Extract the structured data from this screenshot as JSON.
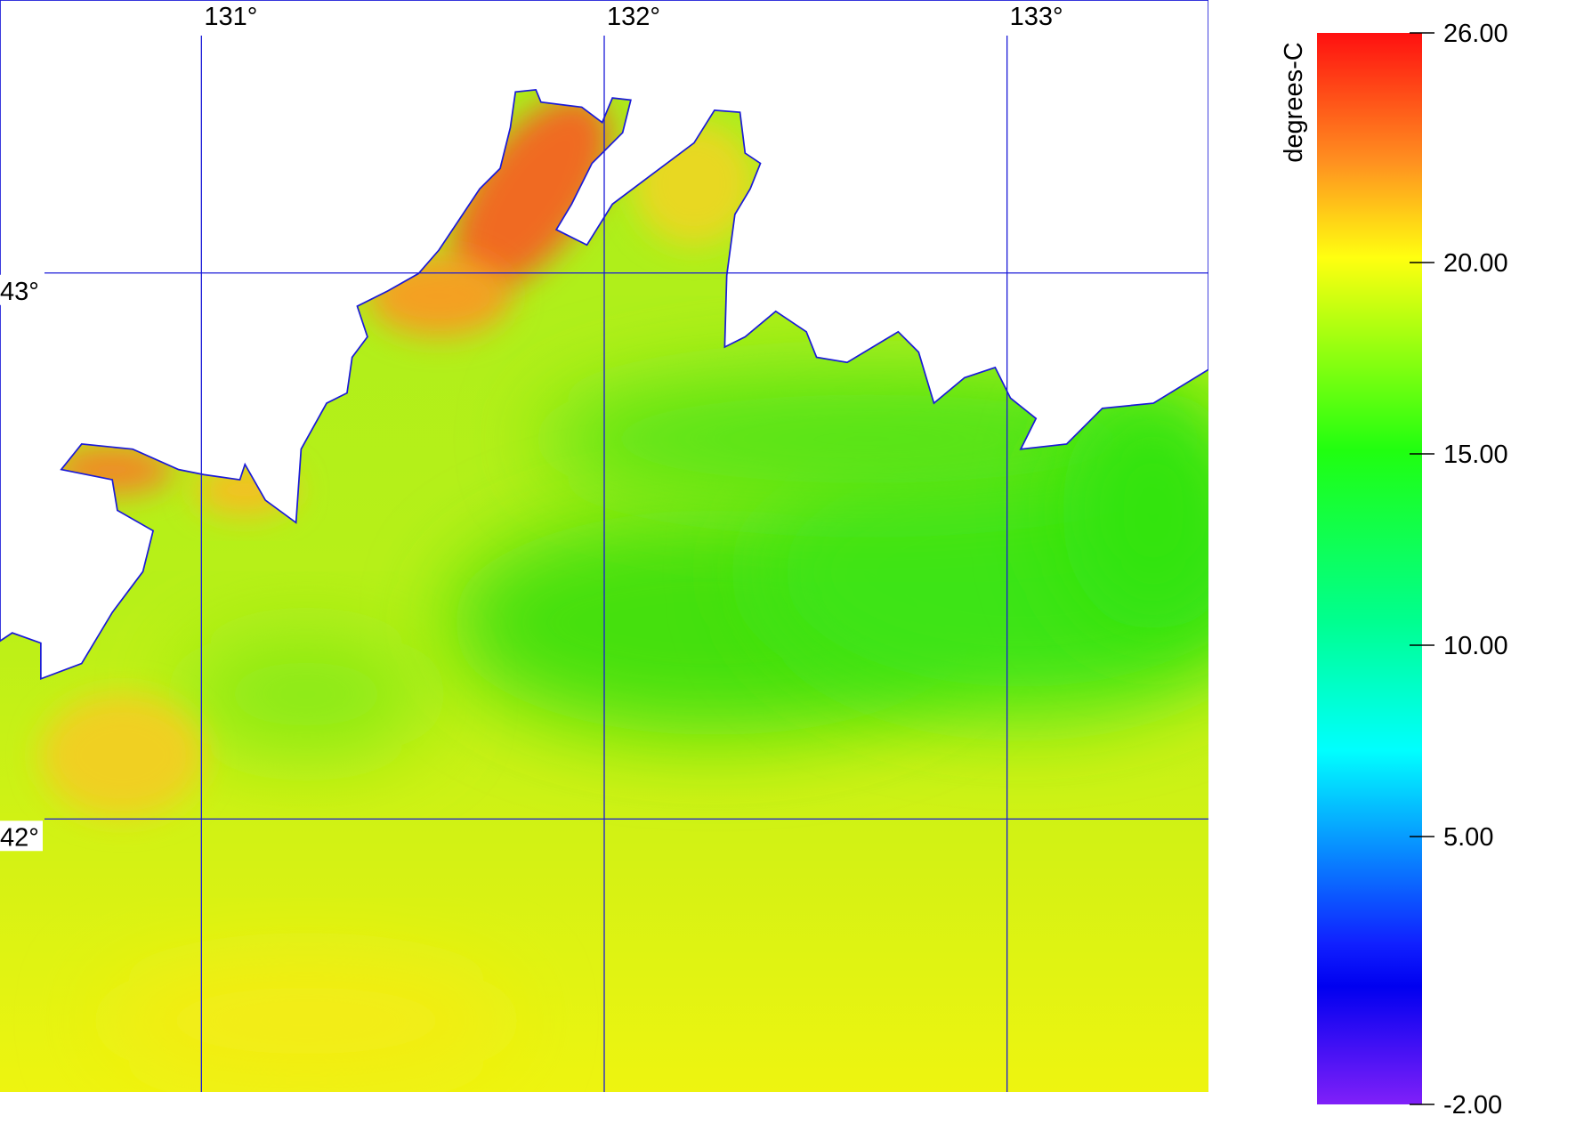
{
  "map": {
    "xlim": [
      130.5,
      133.5
    ],
    "ylim": [
      41.5,
      43.5
    ],
    "lon_ticks": [
      {
        "value": 131,
        "label": "131°"
      },
      {
        "value": 132,
        "label": "132°"
      },
      {
        "value": 133,
        "label": "133°"
      }
    ],
    "lat_ticks": [
      {
        "value": 43,
        "label": "43°"
      },
      {
        "value": 42,
        "label": "42°"
      }
    ]
  },
  "colorbar": {
    "label": "degrees-C",
    "range": [
      -2,
      26
    ],
    "ticks": [
      {
        "value": 26,
        "label": "26.00"
      },
      {
        "value": 20,
        "label": "20.00"
      },
      {
        "value": 15,
        "label": "15.00"
      },
      {
        "value": 10,
        "label": "10.00"
      },
      {
        "value": 5,
        "label": "5.00"
      },
      {
        "value": -2,
        "label": "-2.00"
      }
    ]
  }
}
